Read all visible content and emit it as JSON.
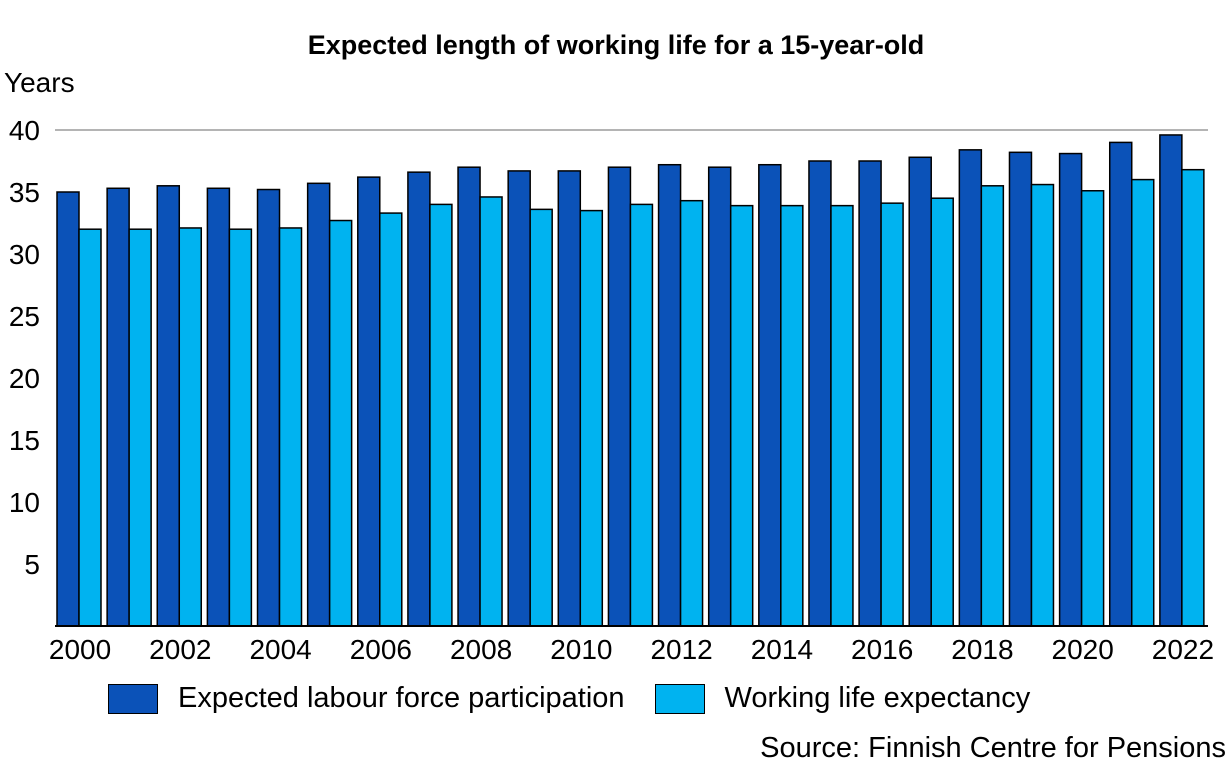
{
  "chart_data": {
    "type": "bar",
    "title": "Expected length of working life for a 15-year-old",
    "ylabel": "Years",
    "xlabel": "",
    "ylim": [
      0,
      40
    ],
    "yticks": [
      5,
      10,
      15,
      20,
      25,
      30,
      35,
      40
    ],
    "grid": "y-major",
    "legend_position": "bottom",
    "categories": [
      "2000",
      "2001",
      "2002",
      "2003",
      "2004",
      "2005",
      "2006",
      "2007",
      "2008",
      "2009",
      "2010",
      "2011",
      "2012",
      "2013",
      "2014",
      "2015",
      "2016",
      "2017",
      "2018",
      "2019",
      "2020",
      "2021",
      "2022"
    ],
    "x_tick_labels": [
      "2000",
      "2002",
      "2004",
      "2006",
      "2008",
      "2010",
      "2012",
      "2014",
      "2016",
      "2018",
      "2020",
      "2022"
    ],
    "series": [
      {
        "name": "Expected labour force participation",
        "color": "#0b52b8",
        "values": [
          35.0,
          35.3,
          35.5,
          35.3,
          35.2,
          35.7,
          36.2,
          36.6,
          37.0,
          36.7,
          36.7,
          37.0,
          37.2,
          37.0,
          37.2,
          37.5,
          37.5,
          37.8,
          38.4,
          38.2,
          38.1,
          39.0,
          39.6
        ]
      },
      {
        "name": "Working life expectancy",
        "color": "#00b3f0",
        "values": [
          32.0,
          32.0,
          32.1,
          32.0,
          32.1,
          32.7,
          33.3,
          34.0,
          34.6,
          33.6,
          33.5,
          34.0,
          34.3,
          33.9,
          33.9,
          33.9,
          34.1,
          34.5,
          35.5,
          35.6,
          35.1,
          36.0,
          36.8
        ]
      }
    ],
    "source": "Source: Finnish Centre for Pensions"
  }
}
